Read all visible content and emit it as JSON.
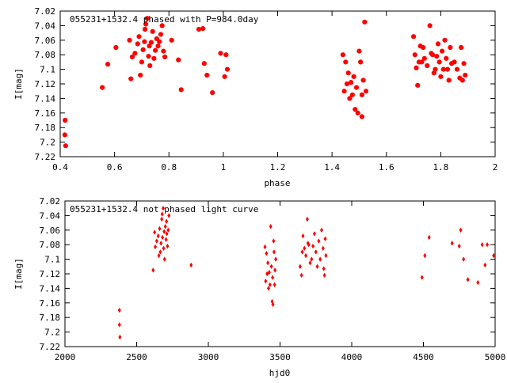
{
  "chart_data": [
    {
      "type": "scatter",
      "title": "055231+1532.4 phased with P=984.0day",
      "xlabel": "phase",
      "ylabel": "I[mag]",
      "xlim": [
        0.4,
        2.0
      ],
      "ylim": [
        7.22,
        7.02
      ],
      "y_inverted": true,
      "grid": false,
      "marker_color": "#ff0000",
      "marker": "filled-circle",
      "x_ticks": [
        0.4,
        0.6,
        0.8,
        1.0,
        1.2,
        1.4,
        1.6,
        1.8,
        2.0
      ],
      "x_tick_labels": [
        "0.4",
        "0.6",
        "0.8",
        "1",
        "1.2",
        "1.4",
        "1.6",
        "1.8",
        "2"
      ],
      "y_ticks": [
        7.02,
        7.04,
        7.06,
        7.08,
        7.1,
        7.12,
        7.14,
        7.16,
        7.18,
        7.2,
        7.22
      ],
      "y_tick_labels": [
        "7.02",
        "7.04",
        "7.06",
        "7.08",
        "7.1",
        "7.12",
        "7.14",
        "7.16",
        "7.18",
        "7.2",
        "7.22"
      ],
      "points": [
        [
          0.418,
          7.17
        ],
        [
          0.417,
          7.19
        ],
        [
          0.42,
          7.205
        ],
        [
          0.555,
          7.125
        ],
        [
          0.575,
          7.093
        ],
        [
          0.605,
          7.07
        ],
        [
          0.655,
          7.06
        ],
        [
          0.66,
          7.113
        ],
        [
          0.665,
          7.083
        ],
        [
          0.675,
          7.078
        ],
        [
          0.685,
          7.065
        ],
        [
          0.69,
          7.055
        ],
        [
          0.695,
          7.108
        ],
        [
          0.7,
          7.09
        ],
        [
          0.705,
          7.073
        ],
        [
          0.71,
          7.062
        ],
        [
          0.712,
          7.045
        ],
        [
          0.715,
          7.038
        ],
        [
          0.72,
          7.03
        ],
        [
          0.725,
          7.082
        ],
        [
          0.728,
          7.068
        ],
        [
          0.73,
          7.095
        ],
        [
          0.735,
          7.063
        ],
        [
          0.74,
          7.048
        ],
        [
          0.745,
          7.085
        ],
        [
          0.75,
          7.074
        ],
        [
          0.755,
          7.058
        ],
        [
          0.76,
          7.068
        ],
        [
          0.765,
          7.062
        ],
        [
          0.77,
          7.052
        ],
        [
          0.775,
          7.04
        ],
        [
          0.78,
          7.075
        ],
        [
          0.785,
          7.083
        ],
        [
          0.81,
          7.06
        ],
        [
          0.835,
          7.087
        ],
        [
          0.845,
          7.128
        ],
        [
          0.91,
          7.045
        ],
        [
          0.925,
          7.044
        ],
        [
          0.93,
          7.092
        ],
        [
          0.94,
          7.108
        ],
        [
          0.96,
          7.132
        ],
        [
          0.99,
          7.078
        ],
        [
          1.005,
          7.11
        ],
        [
          1.01,
          7.08
        ],
        [
          1.015,
          7.1
        ],
        [
          1.44,
          7.08
        ],
        [
          1.445,
          7.13
        ],
        [
          1.45,
          7.09
        ],
        [
          1.455,
          7.12
        ],
        [
          1.46,
          7.105
        ],
        [
          1.465,
          7.14
        ],
        [
          1.47,
          7.118
        ],
        [
          1.475,
          7.135
        ],
        [
          1.48,
          7.11
        ],
        [
          1.485,
          7.155
        ],
        [
          1.49,
          7.125
        ],
        [
          1.495,
          7.16
        ],
        [
          1.5,
          7.075
        ],
        [
          1.505,
          7.09
        ],
        [
          1.51,
          7.135
        ],
        [
          1.515,
          7.115
        ],
        [
          1.52,
          7.035
        ],
        [
          1.525,
          7.13
        ],
        [
          1.51,
          7.165
        ],
        [
          1.7,
          7.055
        ],
        [
          1.705,
          7.08
        ],
        [
          1.71,
          7.098
        ],
        [
          1.715,
          7.122
        ],
        [
          1.72,
          7.09
        ],
        [
          1.725,
          7.068
        ],
        [
          1.73,
          7.09
        ],
        [
          1.735,
          7.07
        ],
        [
          1.74,
          7.085
        ],
        [
          1.75,
          7.095
        ],
        [
          1.76,
          7.04
        ],
        [
          1.765,
          7.078
        ],
        [
          1.77,
          7.08
        ],
        [
          1.775,
          7.105
        ],
        [
          1.78,
          7.1
        ],
        [
          1.785,
          7.082
        ],
        [
          1.79,
          7.065
        ],
        [
          1.795,
          7.09
        ],
        [
          1.8,
          7.11
        ],
        [
          1.805,
          7.075
        ],
        [
          1.81,
          7.1
        ],
        [
          1.815,
          7.06
        ],
        [
          1.82,
          7.085
        ],
        [
          1.825,
          7.1
        ],
        [
          1.83,
          7.115
        ],
        [
          1.835,
          7.07
        ],
        [
          1.84,
          7.092
        ],
        [
          1.85,
          7.09
        ],
        [
          1.86,
          7.1
        ],
        [
          1.87,
          7.112
        ],
        [
          1.875,
          7.07
        ],
        [
          1.88,
          7.115
        ],
        [
          1.885,
          7.092
        ],
        [
          1.89,
          7.108
        ]
      ]
    },
    {
      "type": "scatter",
      "title": "055231+1532.4 not phased light curve",
      "xlabel": "hjd0",
      "ylabel": "I[mag]",
      "xlim": [
        2000,
        5000
      ],
      "ylim": [
        7.22,
        7.02
      ],
      "y_inverted": true,
      "grid": false,
      "marker_color": "#ff0000",
      "marker": "filled-diamond",
      "x_ticks": [
        2000,
        2500,
        3000,
        3500,
        4000,
        4500,
        5000
      ],
      "x_tick_labels": [
        "2000",
        "2500",
        "3000",
        "3500",
        "4000",
        "4500",
        "5000"
      ],
      "y_ticks": [
        7.02,
        7.04,
        7.06,
        7.08,
        7.1,
        7.12,
        7.14,
        7.16,
        7.18,
        7.2,
        7.22
      ],
      "y_tick_labels": [
        "7.02",
        "7.04",
        "7.06",
        "7.08",
        "7.1",
        "7.12",
        "7.14",
        "7.16",
        "7.18",
        "7.2",
        "7.22"
      ],
      "points": [
        [
          2380,
          7.17
        ],
        [
          2380,
          7.19
        ],
        [
          2383,
          7.207
        ],
        [
          2615,
          7.115
        ],
        [
          2625,
          7.063
        ],
        [
          2630,
          7.083
        ],
        [
          2640,
          7.075
        ],
        [
          2650,
          7.068
        ],
        [
          2655,
          7.095
        ],
        [
          2660,
          7.058
        ],
        [
          2665,
          7.09
        ],
        [
          2670,
          7.078
        ],
        [
          2675,
          7.045
        ],
        [
          2678,
          7.038
        ],
        [
          2680,
          7.07
        ],
        [
          2685,
          7.03
        ],
        [
          2688,
          7.085
        ],
        [
          2692,
          7.062
        ],
        [
          2695,
          7.1
        ],
        [
          2700,
          7.055
        ],
        [
          2705,
          7.073
        ],
        [
          2708,
          7.048
        ],
        [
          2710,
          7.065
        ],
        [
          2715,
          7.082
        ],
        [
          2720,
          7.06
        ],
        [
          2725,
          7.04
        ],
        [
          2880,
          7.108
        ],
        [
          3395,
          7.083
        ],
        [
          3400,
          7.13
        ],
        [
          3405,
          7.092
        ],
        [
          3410,
          7.12
        ],
        [
          3415,
          7.105
        ],
        [
          3420,
          7.14
        ],
        [
          3425,
          7.118
        ],
        [
          3430,
          7.135
        ],
        [
          3435,
          7.055
        ],
        [
          3440,
          7.11
        ],
        [
          3445,
          7.158
        ],
        [
          3448,
          7.125
        ],
        [
          3450,
          7.162
        ],
        [
          3455,
          7.075
        ],
        [
          3458,
          7.09
        ],
        [
          3462,
          7.135
        ],
        [
          3465,
          7.115
        ],
        [
          3470,
          7.1
        ],
        [
          3640,
          7.11
        ],
        [
          3650,
          7.122
        ],
        [
          3655,
          7.09
        ],
        [
          3660,
          7.068
        ],
        [
          3670,
          7.085
        ],
        [
          3680,
          7.095
        ],
        [
          3690,
          7.045
        ],
        [
          3695,
          7.078
        ],
        [
          3700,
          7.08
        ],
        [
          3710,
          7.105
        ],
        [
          3720,
          7.1
        ],
        [
          3730,
          7.082
        ],
        [
          3740,
          7.065
        ],
        [
          3750,
          7.09
        ],
        [
          3760,
          7.11
        ],
        [
          3770,
          7.075
        ],
        [
          3780,
          7.1
        ],
        [
          3790,
          7.06
        ],
        [
          3800,
          7.085
        ],
        [
          3805,
          7.113
        ],
        [
          3810,
          7.122
        ],
        [
          3815,
          7.072
        ],
        [
          3820,
          7.095
        ],
        [
          4490,
          7.125
        ],
        [
          4510,
          7.095
        ],
        [
          4540,
          7.07
        ],
        [
          4700,
          7.078
        ],
        [
          4750,
          7.082
        ],
        [
          4760,
          7.06
        ],
        [
          4780,
          7.1
        ],
        [
          4810,
          7.128
        ],
        [
          4880,
          7.132
        ],
        [
          4910,
          7.08
        ],
        [
          4930,
          7.108
        ],
        [
          4945,
          7.08
        ],
        [
          4990,
          7.095
        ]
      ]
    }
  ]
}
